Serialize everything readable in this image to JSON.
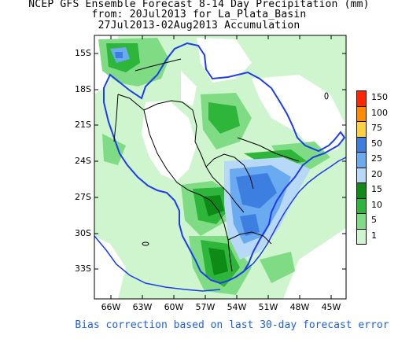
{
  "title": {
    "line1": "NCEP GFS Ensemble Forecast 8-14 Day Precipitation (mm)",
    "line2": "from: 20Jul2013   for La_Plata_Basin",
    "line3": "27Jul2013-02Aug2013 Accumulation"
  },
  "axes": {
    "y_labels": [
      "15S",
      "18S",
      "21S",
      "24S",
      "27S",
      "30S",
      "33S"
    ],
    "x_labels": [
      "66W",
      "63W",
      "60W",
      "57W",
      "54W",
      "51W",
      "48W",
      "45W"
    ]
  },
  "legend": {
    "items": [
      {
        "label": "150",
        "color": "#ff2600"
      },
      {
        "label": "100",
        "color": "#ff8c00"
      },
      {
        "label": "75",
        "color": "#ffd040"
      },
      {
        "label": "50",
        "color": "#3d7fe0"
      },
      {
        "label": "25",
        "color": "#6aaaf0"
      },
      {
        "label": "20",
        "color": "#b8d8f8"
      },
      {
        "label": "15",
        "color": "#0e8a16"
      },
      {
        "label": "10",
        "color": "#2db63a"
      },
      {
        "label": "5",
        "color": "#7fdc84"
      },
      {
        "label": "1",
        "color": "#cff5cf"
      }
    ]
  },
  "footer": "Bias correction based on last 30-day forecast error",
  "colors": {
    "basin_outline": "#1c3cf0",
    "borders": "#000000",
    "footer_text": "#1e5fe0"
  }
}
